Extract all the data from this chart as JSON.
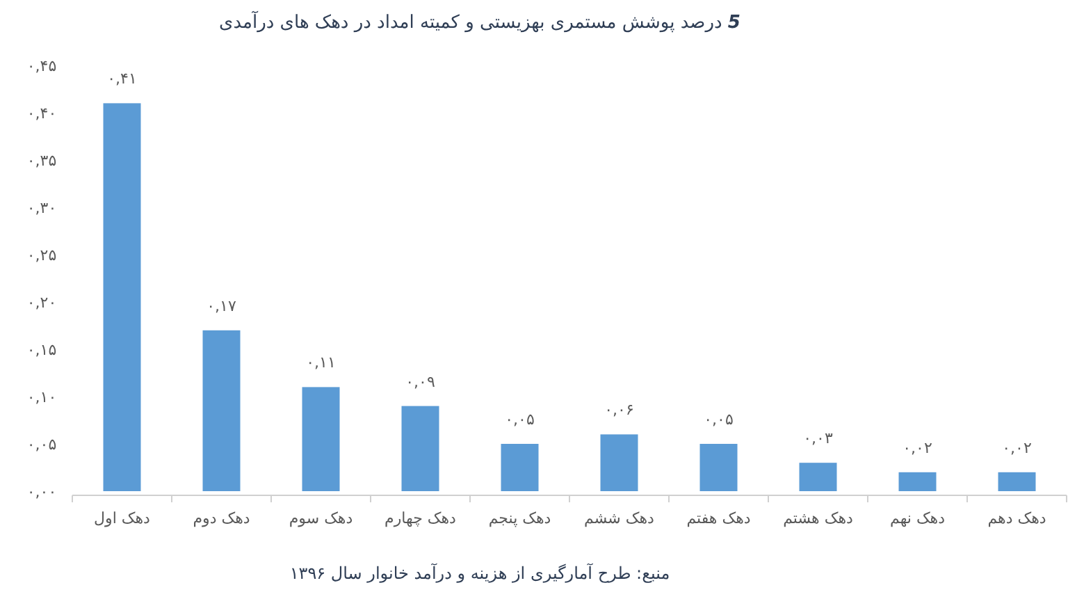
{
  "chart_data": {
    "type": "bar",
    "title": "**5** درصد پوشش مستمری بهزیستی و کمیته امداد در دهک های درآمدی",
    "categories": [
      "دهک اول",
      "دهک دوم",
      "دهک سوم",
      "دهک چهارم",
      "دهک پنجم",
      "دهک ششم",
      "دهک هفتم",
      "دهک هشتم",
      "دهک نهم",
      "دهک دهم"
    ],
    "values": [
      0.41,
      0.17,
      0.11,
      0.09,
      0.05,
      0.06,
      0.05,
      0.03,
      0.02,
      0.02
    ],
    "value_labels": [
      "۰,۴۱",
      "۰,۱۷",
      "۰,۱۱",
      "۰,۰۹",
      "۰,۰۵",
      "۰,۰۶",
      "۰,۰۵",
      "۰,۰۳",
      "۰,۰۲",
      "۰,۰۲"
    ],
    "color": "#5b9bd5",
    "ylim": [
      0,
      0.45
    ],
    "yticks": [
      {
        "value": 0,
        "label": "۰,۰۰"
      },
      {
        "value": 0.05,
        "label": "۰,۰۵"
      },
      {
        "value": 0.1,
        "label": "۰,۱۰"
      },
      {
        "value": 0.15,
        "label": "۰,۱۵"
      },
      {
        "value": 0.2,
        "label": "۰,۲۰"
      },
      {
        "value": 0.25,
        "label": "۰,۲۵"
      },
      {
        "value": 0.3,
        "label": "۰,۳۰"
      },
      {
        "value": 0.35,
        "label": "۰,۳۵"
      },
      {
        "value": 0.4,
        "label": "۰,۴۰"
      },
      {
        "value": 0.45,
        "label": "۰,۴۵"
      }
    ],
    "annotations": [
      "منبع: طرح آمارگیری از هزینه و درآمد خانوار سال ۱۳۹۶"
    ]
  }
}
